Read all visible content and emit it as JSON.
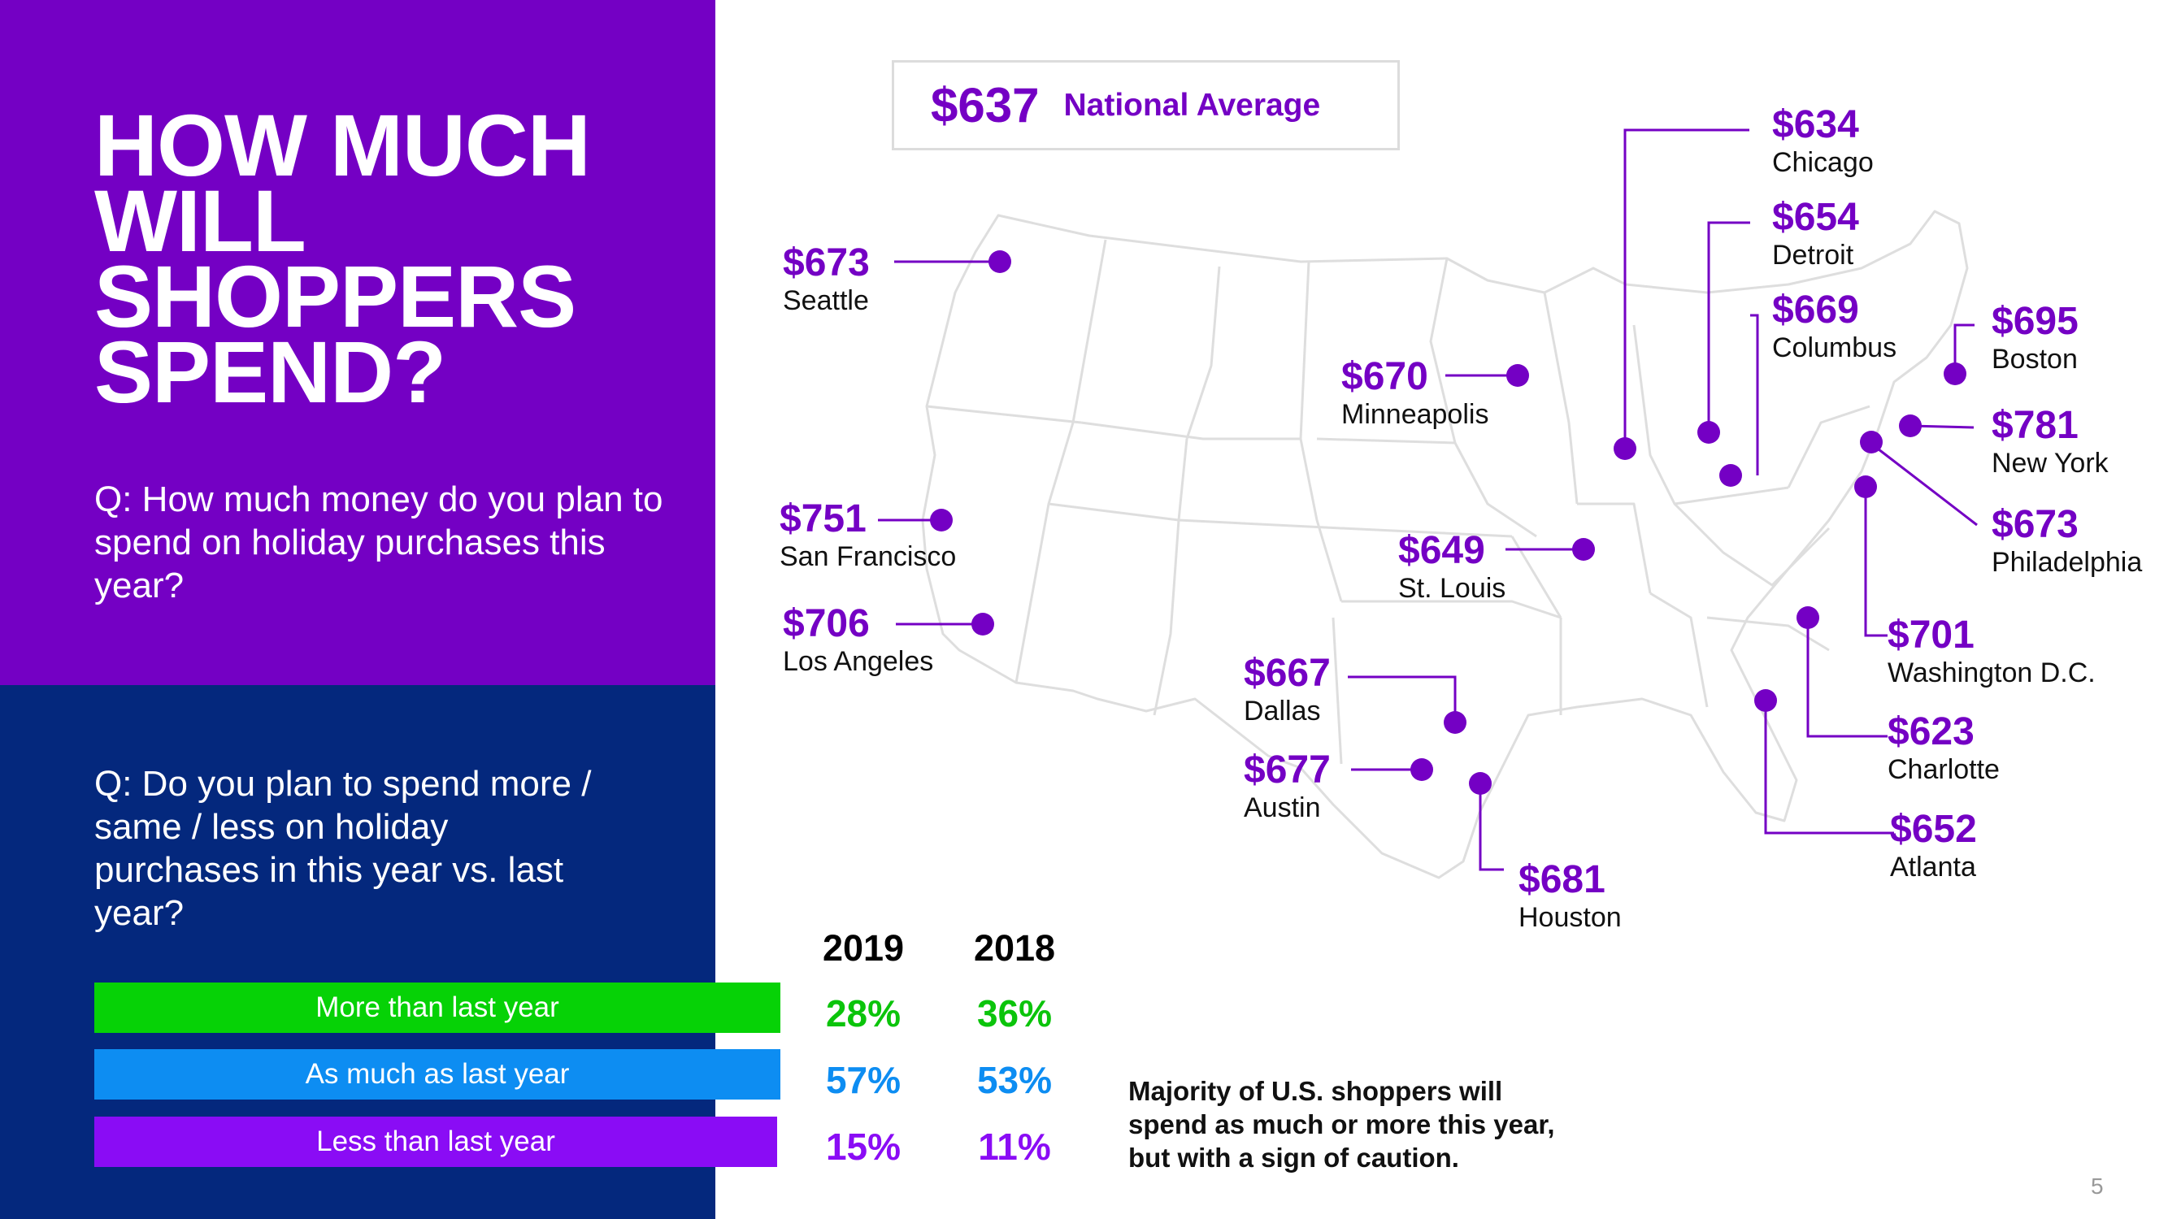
{
  "headline": "HOW MUCH WILL SHOPPERS SPEND?",
  "question1": "Q: How much money do you plan to spend on holiday purchases this year?",
  "question2": "Q: Do you plan to spend more / same / less on holiday purchases in this year vs. last year?",
  "national_average": {
    "value": "$637",
    "label": "National Average"
  },
  "cities": [
    {
      "amount": "$673",
      "name": "Seattle"
    },
    {
      "amount": "$751",
      "name": "San Francisco"
    },
    {
      "amount": "$706",
      "name": "Los Angeles"
    },
    {
      "amount": "$670",
      "name": "Minneapolis"
    },
    {
      "amount": "$649",
      "name": "St. Louis"
    },
    {
      "amount": "$667",
      "name": "Dallas"
    },
    {
      "amount": "$677",
      "name": "Austin"
    },
    {
      "amount": "$681",
      "name": "Houston"
    },
    {
      "amount": "$634",
      "name": "Chicago"
    },
    {
      "amount": "$654",
      "name": "Detroit"
    },
    {
      "amount": "$669",
      "name": "Columbus"
    },
    {
      "amount": "$695",
      "name": "Boston"
    },
    {
      "amount": "$781",
      "name": "New York"
    },
    {
      "amount": "$673",
      "name": "Philadelphia"
    },
    {
      "amount": "$701",
      "name": "Washington D.C."
    },
    {
      "amount": "$623",
      "name": "Charlotte"
    },
    {
      "amount": "$652",
      "name": "Atlanta"
    }
  ],
  "comparison": {
    "years": [
      "2019",
      "2018"
    ],
    "rows": [
      {
        "label": "More than last year",
        "v2019": "28%",
        "v2018": "36%"
      },
      {
        "label": "As much as last year",
        "v2019": "57%",
        "v2018": "53%"
      },
      {
        "label": "Less than last year",
        "v2019": "15%",
        "v2018": "11%"
      }
    ]
  },
  "note": "Majority of U.S. shoppers will spend as much or more this year, but with a sign of caution.",
  "page_number": "5",
  "colors": {
    "purple": "#7400c4",
    "navy": "#04287d",
    "green": "#06d206",
    "blue": "#0d8df2",
    "violet": "#8a0cf5"
  }
}
